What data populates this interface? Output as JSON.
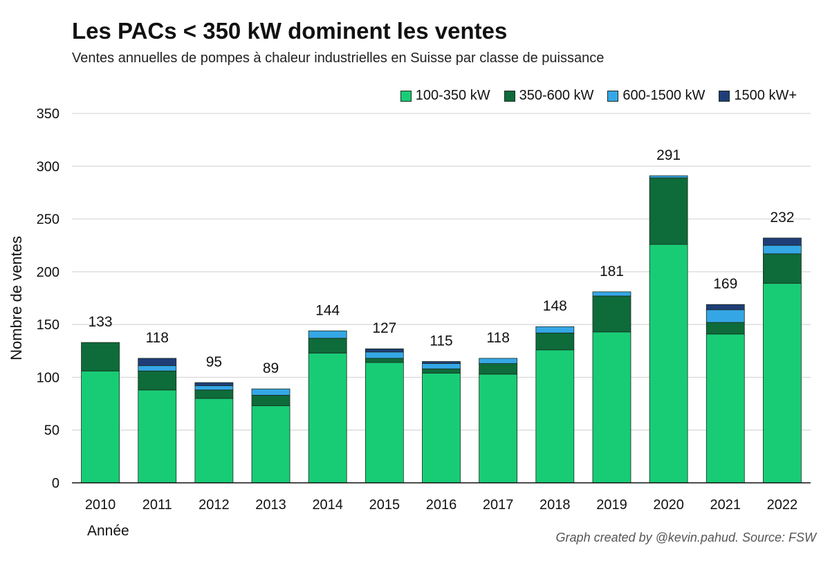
{
  "header": {
    "title": "Les PACs < 350 kW dominent les ventes",
    "subtitle": "Ventes annuelles de pompes à chaleur industrielles en Suisse par classe de puissance"
  },
  "footer": {
    "credit": "Graph created by @kevin.pahud. Source: FSW"
  },
  "chart_data": {
    "type": "bar",
    "stacked": true,
    "title": "Les PACs < 350 kW dominent les ventes",
    "subtitle": "Ventes annuelles de pompes à chaleur industrielles en Suisse par classe de puissance",
    "xlabel": "Année",
    "ylabel": "Nombre de ventes",
    "ylim": [
      0,
      350
    ],
    "yticks": [
      0,
      50,
      100,
      150,
      200,
      250,
      300,
      350
    ],
    "grid": true,
    "legend_position": "top-right",
    "categories": [
      "2010",
      "2011",
      "2012",
      "2013",
      "2014",
      "2015",
      "2016",
      "2017",
      "2018",
      "2019",
      "2020",
      "2021",
      "2022"
    ],
    "series": [
      {
        "name": "100-350 kW",
        "color": "#18cc76",
        "values": [
          106,
          88,
          80,
          73,
          123,
          114,
          104,
          103,
          126,
          143,
          226,
          141,
          189
        ]
      },
      {
        "name": "350-600 kW",
        "color": "#0e6b3a",
        "values": [
          27,
          18,
          8,
          10,
          14,
          4,
          4,
          10,
          16,
          34,
          63,
          11,
          28
        ]
      },
      {
        "name": "600-1500 kW",
        "color": "#35a7e6",
        "values": [
          0,
          5,
          4,
          6,
          7,
          6,
          5,
          5,
          6,
          4,
          2,
          12,
          8
        ]
      },
      {
        "name": "1500 kW+",
        "color": "#1f3e78",
        "values": [
          0,
          7,
          3,
          0,
          0,
          3,
          2,
          0,
          0,
          0,
          0,
          5,
          7
        ]
      }
    ],
    "totals": [
      133,
      118,
      95,
      89,
      144,
      127,
      115,
      118,
      148,
      181,
      291,
      169,
      232
    ]
  }
}
